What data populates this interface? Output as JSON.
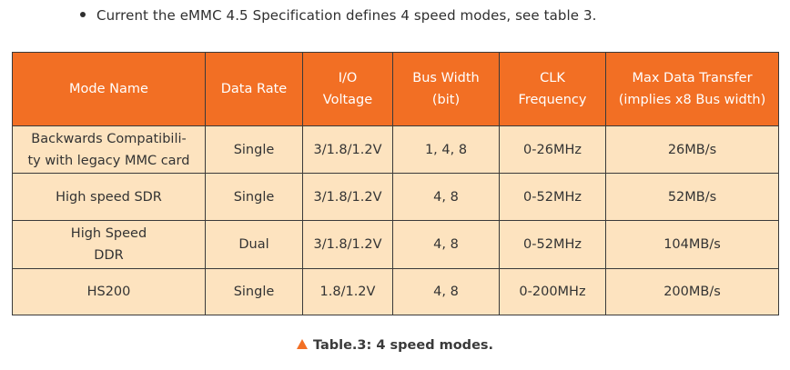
{
  "intro": {
    "bullet_text": "Current the eMMC 4.5 Specification defines 4 speed modes, see table 3."
  },
  "table": {
    "headers": [
      [
        "Mode Name"
      ],
      [
        "Data Rate"
      ],
      [
        "I/O",
        "Voltage"
      ],
      [
        "Bus Width",
        "(bit)"
      ],
      [
        "CLK",
        "Frequency"
      ],
      [
        "Max Data Transfer",
        "(implies x8 Bus width)"
      ]
    ],
    "rows": [
      {
        "mode_name": [
          "Backwards Compatibili-",
          "ty with legacy MMC card"
        ],
        "data_rate": "Single",
        "io_voltage": "3/1.8/1.2V",
        "bus_width": "1, 4, 8",
        "clk_frequency": "0-26MHz",
        "max_transfer": "26MB/s"
      },
      {
        "mode_name": [
          "High speed SDR"
        ],
        "data_rate": "Single",
        "io_voltage": "3/1.8/1.2V",
        "bus_width": "4, 8",
        "clk_frequency": "0-52MHz",
        "max_transfer": "52MB/s"
      },
      {
        "mode_name": [
          "High Speed",
          "DDR"
        ],
        "data_rate": "Dual",
        "io_voltage": "3/1.8/1.2V",
        "bus_width": "4, 8",
        "clk_frequency": "0-52MHz",
        "max_transfer": "104MB/s"
      },
      {
        "mode_name": [
          "HS200"
        ],
        "data_rate": "Single",
        "io_voltage": "1.8/1.2V",
        "bus_width": "4, 8",
        "clk_frequency": "0-200MHz",
        "max_transfer": "200MB/s"
      }
    ],
    "header_color": "#f26f24",
    "body_color": "#fde3bf"
  },
  "caption": {
    "icon": "triangle-up-icon",
    "text": "Table.3: 4 speed modes."
  }
}
